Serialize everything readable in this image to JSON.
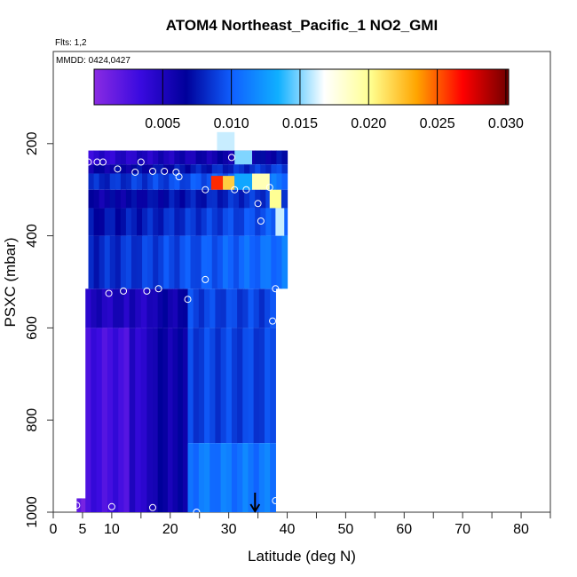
{
  "chart_data": {
    "type": "heatmap",
    "title": "ATOM4 Northeast_Pacific_1 NO2_GMI",
    "flights_label": "Flts: 1,2",
    "dates_label": "MMDD: 0424,0427",
    "xlabel": "Latitude (deg N)",
    "ylabel": "PSXC (mbar)",
    "xlim": [
      0,
      85
    ],
    "ylim": [
      1000,
      0
    ],
    "x_ticks": [
      0,
      5,
      10,
      20,
      30,
      40,
      50,
      60,
      70,
      80
    ],
    "y_ticks": [
      200,
      400,
      600,
      800,
      1000
    ],
    "colorbar": {
      "range": [
        0.0,
        0.0302
      ],
      "ticks": [
        "0.005",
        "0.010",
        "0.015",
        "0.020",
        "0.025",
        "0.030"
      ],
      "colors": [
        "#8a2be2",
        "#3a0ae0",
        "#00009a",
        "#1060ff",
        "#10b0ff",
        "#ffffff",
        "#ffff90",
        "#ffa500",
        "#ff0000",
        "#700000"
      ]
    },
    "columns": [
      {
        "lat": [
          4,
          5.5
        ],
        "bands": [
          [
            970,
            1000,
            0.001
          ]
        ]
      },
      {
        "lat": [
          5.5,
          13
        ],
        "bands": [
          [
            515,
            600,
            0.005
          ],
          [
            600,
            1000,
            0.003
          ]
        ]
      },
      {
        "lat": [
          13,
          17
        ],
        "bands": [
          [
            515,
            600,
            0.005
          ],
          [
            600,
            1000,
            0.0045
          ]
        ]
      },
      {
        "lat": [
          17,
          23
        ],
        "bands": [
          [
            515,
            600,
            0.006
          ],
          [
            600,
            1000,
            0.006
          ]
        ]
      },
      {
        "lat": [
          23,
          38
        ],
        "bands": [
          [
            515,
            600,
            0.009
          ],
          [
            600,
            850,
            0.009
          ],
          [
            850,
            1000,
            0.011
          ]
        ]
      },
      {
        "lat": [
          6,
          40
        ],
        "bands": [
          [
            215,
            245,
            0.004
          ],
          [
            245,
            265,
            0.006
          ],
          [
            265,
            300,
            0.008
          ],
          [
            300,
            340,
            0.006
          ],
          [
            340,
            400,
            0.007
          ],
          [
            400,
            515,
            0.008
          ]
        ]
      }
    ],
    "upper_patches": [
      {
        "lat": [
          27,
          29
        ],
        "p": [
          270,
          300
        ],
        "value": 0.026
      },
      {
        "lat": [
          29,
          31
        ],
        "p": [
          270,
          300
        ],
        "value": 0.022
      },
      {
        "lat": [
          31,
          34
        ],
        "p": [
          265,
          300
        ],
        "value": 0.013
      },
      {
        "lat": [
          34,
          37
        ],
        "p": [
          265,
          300
        ],
        "value": 0.019
      },
      {
        "lat": [
          28,
          31
        ],
        "p": [
          175,
          215
        ],
        "value": 0.016
      },
      {
        "lat": [
          31,
          34
        ],
        "p": [
          215,
          245
        ],
        "value": 0.015
      },
      {
        "lat": [
          37,
          39
        ],
        "p": [
          300,
          340
        ],
        "value": 0.02
      },
      {
        "lat": [
          38,
          39.5
        ],
        "p": [
          340,
          400
        ],
        "value": 0.016
      }
    ],
    "observations": [
      {
        "lat": 6,
        "p": 240
      },
      {
        "lat": 7.5,
        "p": 240
      },
      {
        "lat": 8.5,
        "p": 240
      },
      {
        "lat": 11,
        "p": 255
      },
      {
        "lat": 14,
        "p": 262
      },
      {
        "lat": 15,
        "p": 240
      },
      {
        "lat": 17,
        "p": 260
      },
      {
        "lat": 19,
        "p": 260
      },
      {
        "lat": 21,
        "p": 262
      },
      {
        "lat": 21.5,
        "p": 272
      },
      {
        "lat": 26,
        "p": 300
      },
      {
        "lat": 31,
        "p": 300
      },
      {
        "lat": 33,
        "p": 300
      },
      {
        "lat": 35,
        "p": 330
      },
      {
        "lat": 35.5,
        "p": 368
      },
      {
        "lat": 37,
        "p": 295
      },
      {
        "lat": 30.5,
        "p": 230
      },
      {
        "lat": 5,
        "p": 505
      },
      {
        "lat": 4.2,
        "p": 527
      },
      {
        "lat": 9.5,
        "p": 525
      },
      {
        "lat": 12,
        "p": 520
      },
      {
        "lat": 16,
        "p": 520
      },
      {
        "lat": 18,
        "p": 515
      },
      {
        "lat": 23,
        "p": 538
      },
      {
        "lat": 26,
        "p": 495
      },
      {
        "lat": 38,
        "p": 515
      },
      {
        "lat": 37.5,
        "p": 585
      },
      {
        "lat": 39.5,
        "p": 600
      },
      {
        "lat": 4,
        "p": 985
      },
      {
        "lat": 10,
        "p": 988
      },
      {
        "lat": 17,
        "p": 990
      },
      {
        "lat": 24.5,
        "p": 1000
      },
      {
        "lat": 38,
        "p": 975
      }
    ],
    "arrow_lat": 34.5
  }
}
